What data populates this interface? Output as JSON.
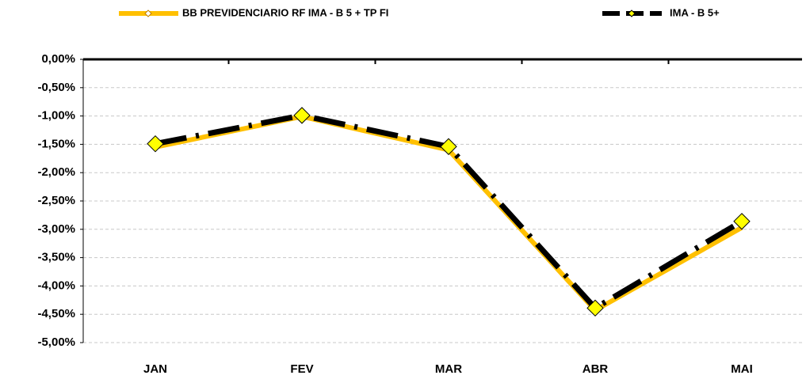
{
  "chart_data": {
    "type": "line",
    "categories": [
      "JAN",
      "FEV",
      "MAR",
      "ABR",
      "MAI"
    ],
    "series": [
      {
        "name": "BB PREVIDENCIARIO RF IMA - B 5 + TP FI",
        "color": "#ffc000",
        "values": [
          -1.55,
          -1.01,
          -1.6,
          -4.43,
          -2.97
        ]
      },
      {
        "name": "IMA - B 5+",
        "color": "#000000",
        "marker_color": "#ffff00",
        "values": [
          -1.49,
          -0.99,
          -1.54,
          -4.39,
          -2.86
        ]
      }
    ],
    "ylim": [
      -5,
      0
    ],
    "yticks": [
      {
        "value": 0,
        "label": "0,00%"
      },
      {
        "value": -0.5,
        "label": "-0,50%"
      },
      {
        "value": -1,
        "label": "-1,00%"
      },
      {
        "value": -1.5,
        "label": "-1,50%"
      },
      {
        "value": -2,
        "label": "-2,00%"
      },
      {
        "value": -2.5,
        "label": "-2,50%"
      },
      {
        "value": -3,
        "label": "-3,00%"
      },
      {
        "value": -3.5,
        "label": "-3,50%"
      },
      {
        "value": -4,
        "label": "-4,00%"
      },
      {
        "value": -4.5,
        "label": "-4,50%"
      },
      {
        "value": -5,
        "label": "-5,00%"
      }
    ],
    "grid": true,
    "legend": "top"
  }
}
